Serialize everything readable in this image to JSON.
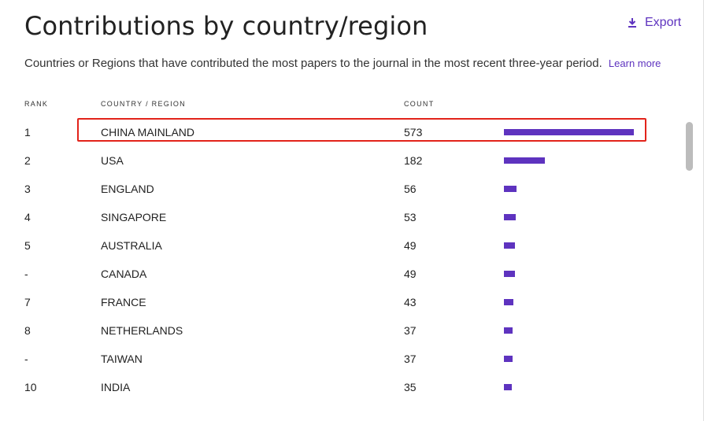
{
  "title": "Contributions by country/region",
  "export_label": "Export",
  "description": "Countries or Regions that have contributed the most papers to the journal in the most recent three-year period.",
  "learn_more": "Learn more",
  "headers": {
    "rank": "RANK",
    "country": "COUNTRY / REGION",
    "count": "COUNT"
  },
  "colors": {
    "bar": "#5e33bf",
    "accent": "#5e33bf",
    "highlight": "#e2231a"
  },
  "icons": {
    "export": "download-icon"
  },
  "rows": [
    {
      "rank": "1",
      "country": "CHINA MAINLAND",
      "count": "573"
    },
    {
      "rank": "2",
      "country": "USA",
      "count": "182"
    },
    {
      "rank": "3",
      "country": "ENGLAND",
      "count": "56"
    },
    {
      "rank": "4",
      "country": "SINGAPORE",
      "count": "53"
    },
    {
      "rank": "5",
      "country": "AUSTRALIA",
      "count": "49"
    },
    {
      "rank": "-",
      "country": "CANADA",
      "count": "49"
    },
    {
      "rank": "7",
      "country": "FRANCE",
      "count": "43"
    },
    {
      "rank": "8",
      "country": "NETHERLANDS",
      "count": "37"
    },
    {
      "rank": "-",
      "country": "TAIWAN",
      "count": "37"
    },
    {
      "rank": "10",
      "country": "INDIA",
      "count": "35"
    }
  ]
}
